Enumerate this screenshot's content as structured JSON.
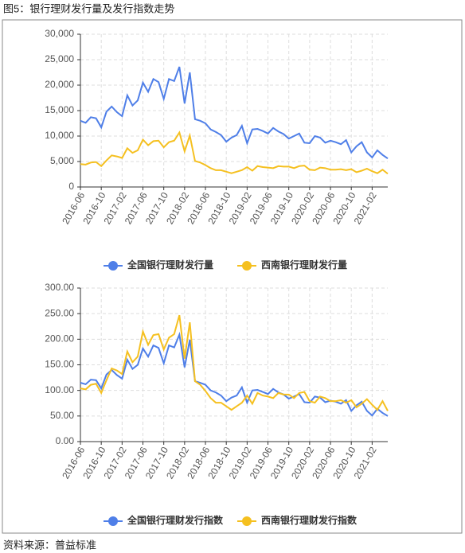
{
  "title": "图5：银行理财发行量及发行指数走势",
  "source": "资料来源：普益标准",
  "chart_data": [
    {
      "type": "line",
      "categories": [
        "2016-06",
        null,
        null,
        null,
        "2016-10",
        null,
        null,
        null,
        "2017-02",
        null,
        null,
        null,
        "2017-06",
        null,
        null,
        null,
        "2017-10",
        null,
        null,
        null,
        "2018-02",
        null,
        null,
        null,
        "2018-06",
        null,
        null,
        null,
        "2018-10",
        null,
        null,
        null,
        "2019-02",
        null,
        null,
        null,
        "2019-06",
        null,
        null,
        null,
        "2019-10",
        null,
        null,
        null,
        "2020-02",
        null,
        null,
        null,
        "2020-06",
        null,
        null,
        null,
        "2020-10",
        null,
        null,
        null,
        "2021-02",
        null,
        null,
        null
      ],
      "series": [
        {
          "name": "全国银行理财发行量",
          "color": "#4f7fe8",
          "values": [
            13000,
            12600,
            13700,
            13500,
            11700,
            14800,
            15800,
            14700,
            13900,
            18000,
            16000,
            17000,
            20500,
            18700,
            21200,
            20600,
            17300,
            21200,
            20800,
            23600,
            16400,
            22500,
            13300,
            13000,
            12500,
            11300,
            10800,
            10200,
            8900,
            9700,
            10200,
            12000,
            8600,
            11300,
            11400,
            11000,
            10500,
            11600,
            10900,
            10400,
            9500,
            10000,
            10500,
            8700,
            8600,
            10000,
            9700,
            8700,
            9100,
            8800,
            8400,
            9200,
            6800,
            8000,
            8800,
            6800,
            5800,
            7200,
            6300,
            5600
          ]
        },
        {
          "name": "西南银行理财发行量",
          "color": "#f5c020",
          "values": [
            4500,
            4400,
            4800,
            4900,
            4100,
            5200,
            6200,
            6000,
            5700,
            7600,
            6700,
            7200,
            9300,
            8200,
            9000,
            9100,
            7800,
            8800,
            9100,
            10700,
            7000,
            10100,
            5100,
            4800,
            4300,
            3700,
            3300,
            3300,
            3000,
            2700,
            3000,
            3300,
            3900,
            3200,
            4100,
            3900,
            3800,
            3700,
            4100,
            4000,
            4000,
            3700,
            4100,
            4200,
            3400,
            3300,
            3800,
            3700,
            3400,
            3400,
            3500,
            3300,
            3500,
            2900,
            3200,
            3600,
            3100,
            2700,
            3400,
            2600
          ]
        }
      ],
      "ylim": [
        0,
        30000
      ],
      "yticks": [
        0,
        {
          "value": 5000,
          "label": "5,000"
        },
        {
          "value": 10000,
          "label": "10,000"
        },
        {
          "value": 15000,
          "label": "15,000"
        },
        {
          "value": 20000,
          "label": "20,000"
        },
        {
          "value": 25000,
          "label": "25,000"
        },
        {
          "value": 30000,
          "label": "30,000"
        }
      ],
      "grid": true
    },
    {
      "type": "line",
      "categories": [
        "2016-06",
        null,
        null,
        null,
        "2016-10",
        null,
        null,
        null,
        "2017-02",
        null,
        null,
        null,
        "2017-06",
        null,
        null,
        null,
        "2017-10",
        null,
        null,
        null,
        "2018-02",
        null,
        null,
        null,
        "2018-06",
        null,
        null,
        null,
        "2018-10",
        null,
        null,
        null,
        "2019-02",
        null,
        null,
        null,
        "2019-06",
        null,
        null,
        null,
        "2019-10",
        null,
        null,
        null,
        "2020-02",
        null,
        null,
        null,
        "2020-06",
        null,
        null,
        null,
        "2020-10",
        null,
        null,
        null,
        "2021-02",
        null,
        null,
        null
      ],
      "series": [
        {
          "name": "全国银行理财发行指数",
          "color": "#4f7fe8",
          "values": [
            115,
            112,
            121,
            120,
            104,
            131,
            140,
            130,
            123,
            160,
            142,
            150,
            182,
            166,
            188,
            183,
            153,
            188,
            184,
            209,
            145,
            199,
            118,
            115,
            111,
            100,
            96,
            90,
            79,
            86,
            90,
            106,
            76,
            100,
            101,
            97,
            93,
            103,
            96,
            92,
            84,
            88,
            93,
            77,
            76,
            88,
            86,
            77,
            80,
            78,
            74,
            81,
            60,
            71,
            78,
            60,
            51,
            64,
            56,
            50
          ]
        },
        {
          "name": "西南银行理财发行指数",
          "color": "#f5c020",
          "values": [
            104,
            102,
            111,
            113,
            95,
            120,
            143,
            139,
            132,
            176,
            155,
            166,
            215,
            189,
            208,
            210,
            180,
            203,
            210,
            247,
            162,
            233,
            118,
            111,
            99,
            85,
            76,
            76,
            69,
            62,
            69,
            76,
            90,
            74,
            95,
            90,
            88,
            85,
            95,
            92,
            92,
            85,
            95,
            97,
            79,
            76,
            88,
            85,
            79,
            79,
            81,
            76,
            81,
            67,
            74,
            83,
            72,
            62,
            79,
            60
          ]
        }
      ],
      "ylim": [
        0,
        300
      ],
      "yticks": [
        {
          "value": 0,
          "label": "0.00"
        },
        {
          "value": 50,
          "label": "50.00"
        },
        {
          "value": 100,
          "label": "100.00"
        },
        {
          "value": 150,
          "label": "150.00"
        },
        {
          "value": 200,
          "label": "200.00"
        },
        {
          "value": 250,
          "label": "250.00"
        },
        {
          "value": 300,
          "label": "300.00"
        }
      ],
      "grid": true
    }
  ]
}
